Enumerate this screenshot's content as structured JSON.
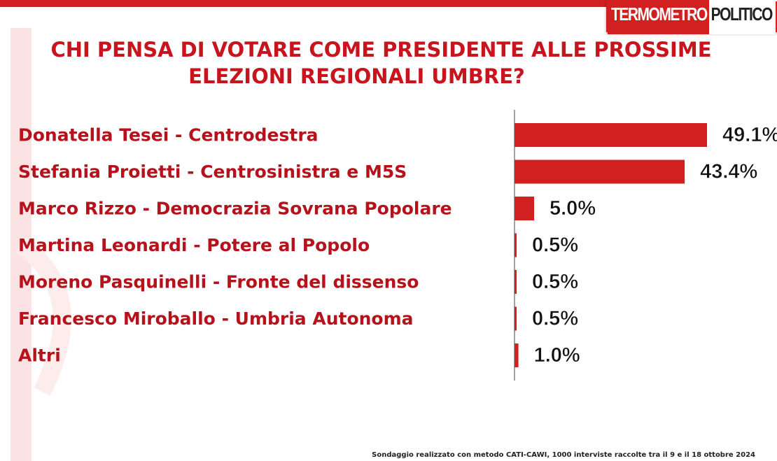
{
  "header": {
    "logo_part1": "TERMOMETRO",
    "logo_part2": "POLITICO",
    "title_line1": "CHI PENSA DI VOTARE COME PRESIDENTE ALLE PROSSIME",
    "title_line2": "ELEZIONI REGIONALI UMBRE?"
  },
  "footnote": "Sondaggio realizzato con metodo CATI-CAWI, 1000 interviste raccolte tra il 9 e il 18 ottobre 2024",
  "colors": {
    "accent": "#d21f1f",
    "title": "#c8141c",
    "label": "#b5121b",
    "value_text": "#111111"
  },
  "chart_data": {
    "type": "bar",
    "orientation": "horizontal",
    "title": "CHI PENSA DI VOTARE COME PRESIDENTE ALLE PROSSIME ELEZIONI REGIONALI UMBRE?",
    "categories": [
      "Donatella Tesei - Centrodestra",
      "Stefania Proietti - Centrosinistra e M5S",
      "Marco Rizzo - Democrazia Sovrana Popolare",
      "Martina Leonardi - Potere al Popolo",
      "Moreno Pasquinelli  - Fronte del dissenso",
      "Francesco Miroballo - Umbria Autonoma",
      "Altri"
    ],
    "values": [
      49.1,
      43.4,
      5.0,
      0.5,
      0.5,
      0.5,
      1.0
    ],
    "value_labels": [
      "49.1%",
      "43.4%",
      "5.0%",
      "0.5%",
      "0.5%",
      "0.5%",
      "1.0%"
    ],
    "unit": "%",
    "xlim": [
      0,
      49.1
    ],
    "grid": false,
    "legend": "none"
  }
}
